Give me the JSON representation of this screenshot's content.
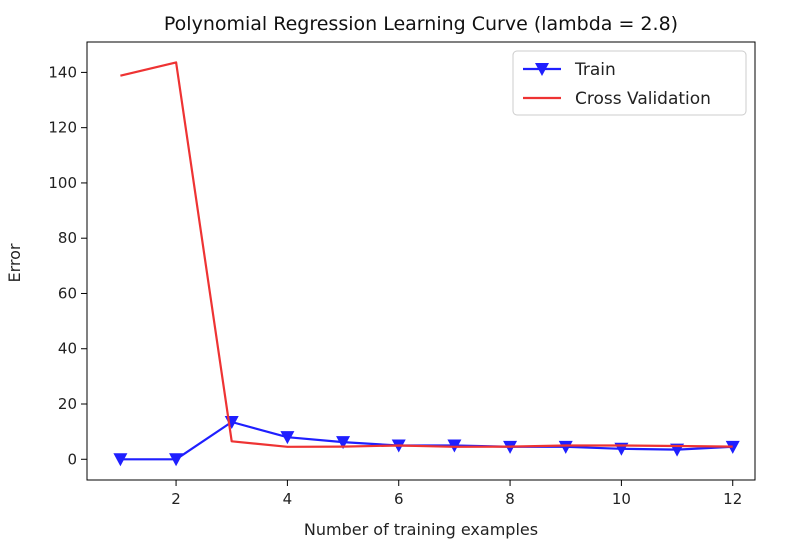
{
  "chart_data": {
    "type": "line",
    "title": "Polynomial Regression Learning Curve (lambda = 2.8)",
    "xlabel": "Number of training examples",
    "ylabel": "Error",
    "xlim": [
      0.4,
      12.4
    ],
    "ylim": [
      -7.5,
      151
    ],
    "xticks": [
      2,
      4,
      6,
      8,
      10,
      12
    ],
    "yticks": [
      0,
      20,
      40,
      60,
      80,
      100,
      120,
      140
    ],
    "grid": false,
    "legend_position": "top-right",
    "x": [
      1,
      2,
      3,
      4,
      5,
      6,
      7,
      8,
      9,
      10,
      11,
      12
    ],
    "series": [
      {
        "name": "Train",
        "color": "#1f1fff",
        "marker": "triangle-down",
        "values": [
          0.0,
          0.0,
          13.5,
          8.0,
          6.2,
          5.0,
          5.0,
          4.5,
          4.5,
          3.8,
          3.5,
          4.5
        ]
      },
      {
        "name": "Cross Validation",
        "color": "#ee3333",
        "marker": "none",
        "values": [
          138.8,
          143.6,
          6.5,
          4.5,
          4.6,
          5.0,
          4.5,
          4.6,
          5.0,
          5.0,
          4.8,
          4.6
        ]
      }
    ]
  }
}
